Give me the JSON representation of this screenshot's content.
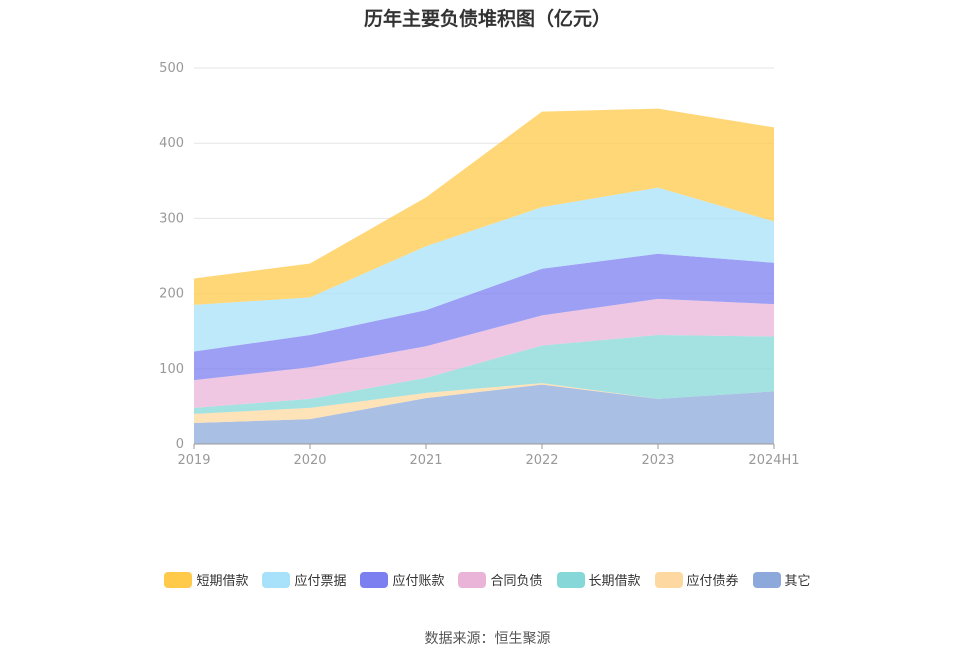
{
  "chart_data": {
    "type": "area",
    "title": "历年主要负债堆积图（亿元）",
    "categories": [
      "2019",
      "2020",
      "2021",
      "2022",
      "2023",
      "2024H1"
    ],
    "stacked": true,
    "ylim": [
      0,
      500
    ],
    "yticks": [
      0,
      100,
      200,
      300,
      400,
      500
    ],
    "grid": true,
    "legend_position": "bottom",
    "series": [
      {
        "name": "短期借款",
        "color": "#FFC94A",
        "values": [
          35,
          45,
          65,
          127,
          105,
          125
        ]
      },
      {
        "name": "应付票据",
        "color": "#A8E2FA",
        "values": [
          62,
          50,
          85,
          82,
          88,
          55
        ]
      },
      {
        "name": "应付账款",
        "color": "#7B7FF0",
        "values": [
          38,
          43,
          48,
          62,
          60,
          55
        ]
      },
      {
        "name": "合同负债",
        "color": "#EAB4D8",
        "values": [
          37,
          42,
          42,
          40,
          48,
          43
        ]
      },
      {
        "name": "长期借款",
        "color": "#86D8D8",
        "values": [
          8,
          12,
          20,
          50,
          85,
          73
        ]
      },
      {
        "name": "应付债券",
        "color": "#FDD8A0",
        "values": [
          12,
          15,
          7,
          2,
          0,
          0
        ]
      },
      {
        "name": "其它",
        "color": "#8DA9DB",
        "values": [
          28,
          33,
          61,
          79,
          60,
          70
        ]
      }
    ]
  },
  "source_text": "数据来源：恒生聚源"
}
